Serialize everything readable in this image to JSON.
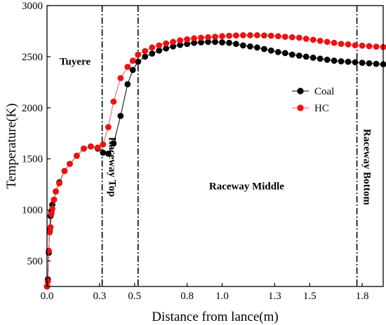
{
  "chart_data": {
    "type": "line",
    "title": "",
    "xlabel": "Distance from lance(m)",
    "ylabel": "Temperature(K)",
    "xlim": [
      0,
      1.92
    ],
    "ylim": [
      250,
      3000
    ],
    "xticks": [
      0.0,
      0.3,
      0.5,
      0.8,
      1.0,
      1.3,
      1.5,
      1.8
    ],
    "xtick_labels": [
      "0.0",
      "0.3",
      "0.5",
      "0.8",
      "1.0",
      "1.3",
      "1.5",
      "1.8"
    ],
    "yticks": [
      500,
      1000,
      1500,
      2000,
      2500,
      3000
    ],
    "ytick_labels": [
      "500",
      "1000",
      "1500",
      "2000",
      "2500",
      "3000"
    ],
    "grid": false,
    "legend_position": "upper-right",
    "dividers": [
      0.315,
      0.52,
      1.77
    ],
    "regions": [
      {
        "label": "Tuyere",
        "x": 0.16,
        "y": 2420,
        "rotate": false
      },
      {
        "label": "Raceway Top",
        "x": 0.355,
        "y": 1420,
        "rotate": true
      },
      {
        "label": "Raceway Middle",
        "x": 1.14,
        "y": 1200,
        "rotate": false
      },
      {
        "label": "Raceway Bottom",
        "x": 1.81,
        "y": 1420,
        "rotate": true
      }
    ],
    "series": [
      {
        "name": "Coal",
        "color": "#000000",
        "line_color": "#000000",
        "x": [
          0.0,
          0.005,
          0.01,
          0.015,
          0.02,
          0.025,
          0.03,
          0.04,
          0.05,
          0.07,
          0.1,
          0.13,
          0.17,
          0.21,
          0.25,
          0.29,
          0.32,
          0.35,
          0.38,
          0.42,
          0.46,
          0.49,
          0.52,
          0.56,
          0.6,
          0.64,
          0.68,
          0.72,
          0.76,
          0.8,
          0.84,
          0.88,
          0.92,
          0.96,
          1.0,
          1.04,
          1.08,
          1.12,
          1.16,
          1.2,
          1.24,
          1.28,
          1.32,
          1.36,
          1.4,
          1.44,
          1.48,
          1.52,
          1.56,
          1.6,
          1.64,
          1.68,
          1.72,
          1.76,
          1.8,
          1.84,
          1.88,
          1.92
        ],
        "y": [
          250,
          320,
          580,
          800,
          940,
          980,
          1050,
          1100,
          1180,
          1270,
          1380,
          1450,
          1530,
          1600,
          1620,
          1600,
          1560,
          1550,
          1650,
          1920,
          2230,
          2370,
          2450,
          2500,
          2530,
          2560,
          2580,
          2600,
          2615,
          2625,
          2635,
          2640,
          2645,
          2645,
          2640,
          2635,
          2625,
          2610,
          2600,
          2590,
          2575,
          2560,
          2545,
          2535,
          2520,
          2510,
          2500,
          2490,
          2480,
          2470,
          2460,
          2455,
          2450,
          2445,
          2440,
          2435,
          2430,
          2425
        ]
      },
      {
        "name": "HC",
        "color": "#ee1111",
        "line_color": "#ee5555",
        "x": [
          0.0,
          0.005,
          0.01,
          0.015,
          0.02,
          0.025,
          0.03,
          0.04,
          0.05,
          0.07,
          0.1,
          0.13,
          0.17,
          0.21,
          0.25,
          0.29,
          0.32,
          0.35,
          0.38,
          0.42,
          0.46,
          0.49,
          0.52,
          0.56,
          0.6,
          0.64,
          0.68,
          0.72,
          0.76,
          0.8,
          0.84,
          0.88,
          0.92,
          0.96,
          1.0,
          1.04,
          1.08,
          1.12,
          1.16,
          1.2,
          1.24,
          1.28,
          1.32,
          1.36,
          1.4,
          1.44,
          1.48,
          1.52,
          1.56,
          1.6,
          1.64,
          1.68,
          1.72,
          1.76,
          1.8,
          1.84,
          1.88,
          1.92
        ],
        "y": [
          250,
          300,
          600,
          780,
          830,
          960,
          1010,
          1100,
          1180,
          1260,
          1380,
          1450,
          1530,
          1600,
          1620,
          1610,
          1640,
          1810,
          2060,
          2290,
          2400,
          2460,
          2520,
          2555,
          2590,
          2610,
          2630,
          2645,
          2660,
          2670,
          2680,
          2685,
          2690,
          2695,
          2700,
          2705,
          2708,
          2710,
          2710,
          2710,
          2708,
          2705,
          2700,
          2695,
          2690,
          2685,
          2675,
          2665,
          2655,
          2645,
          2635,
          2625,
          2620,
          2612,
          2608,
          2603,
          2598,
          2595
        ]
      }
    ]
  }
}
